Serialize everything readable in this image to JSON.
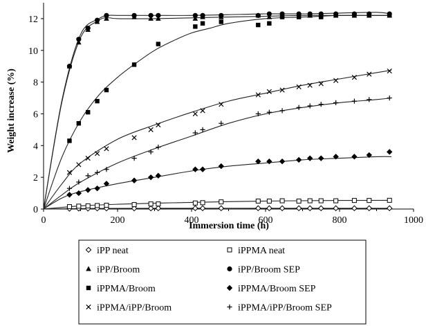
{
  "chart_data": {
    "type": "scatter",
    "title": "",
    "xlabel": "Immersion time (h)",
    "ylabel": "Weight increase  (%)",
    "xlim": [
      0,
      1000
    ],
    "ylim": [
      0,
      13
    ],
    "x_ticks": [
      "0",
      "200",
      "400",
      "600",
      "800",
      "1000"
    ],
    "y_ticks": [
      "0",
      "2",
      "4",
      "6",
      "8",
      "10",
      "12"
    ],
    "x_tick_values": [
      0,
      200,
      400,
      600,
      800,
      1000
    ],
    "y_tick_values": [
      0,
      2,
      4,
      6,
      8,
      10,
      12
    ],
    "grid": false,
    "legend_position": "bottom",
    "series": [
      {
        "name": "iPP neat",
        "marker": "diamond-open",
        "x": [
          70,
          95,
          120,
          145,
          170,
          245,
          290,
          310,
          410,
          430,
          480,
          580,
          610,
          645,
          690,
          720,
          750,
          790,
          840,
          880,
          935
        ],
        "y": [
          0.02,
          0.03,
          0.03,
          0.04,
          0.04,
          0.04,
          0.04,
          0.05,
          0.05,
          0.05,
          0.05,
          0.05,
          0.05,
          0.05,
          0.05,
          0.05,
          0.05,
          0.05,
          0.05,
          0.05,
          0.05
        ]
      },
      {
        "name": "iPPMA neat",
        "marker": "square-open",
        "x": [
          70,
          95,
          120,
          145,
          170,
          245,
          290,
          310,
          410,
          430,
          480,
          580,
          610,
          645,
          690,
          720,
          750,
          790,
          840,
          880,
          935
        ],
        "y": [
          0.15,
          0.18,
          0.2,
          0.22,
          0.24,
          0.28,
          0.32,
          0.32,
          0.38,
          0.4,
          0.45,
          0.5,
          0.5,
          0.52,
          0.5,
          0.52,
          0.52,
          0.52,
          0.54,
          0.54,
          0.55
        ]
      },
      {
        "name": "iPP/Broom",
        "marker": "triangle-filled",
        "x": [
          70,
          95,
          120,
          145,
          170,
          245,
          290,
          310,
          410,
          430,
          480,
          580,
          610,
          645,
          690,
          720,
          750,
          790,
          840,
          880,
          935
        ],
        "y": [
          9.0,
          10.5,
          11.3,
          11.8,
          12.0,
          12.1,
          12.0,
          12.0,
          12.0,
          12.1,
          12.1,
          12.2,
          12.1,
          12.2,
          12.2,
          12.2,
          12.2,
          12.2,
          12.2,
          12.2,
          12.2
        ]
      },
      {
        "name": "iPP/Broom SEP",
        "marker": "circle-filled",
        "x": [
          70,
          95,
          120,
          145,
          170,
          245,
          290,
          310,
          410,
          430,
          480,
          580,
          610,
          645,
          690,
          720,
          750,
          790,
          840,
          880,
          935
        ],
        "y": [
          9.0,
          10.7,
          11.4,
          11.9,
          12.2,
          12.2,
          12.2,
          12.2,
          12.2,
          12.2,
          12.2,
          12.2,
          12.3,
          12.3,
          12.3,
          12.3,
          12.3,
          12.3,
          12.3,
          12.3,
          12.3
        ]
      },
      {
        "name": "iPPMA/Broom",
        "marker": "square-filled",
        "x": [
          70,
          95,
          120,
          145,
          170,
          245,
          310,
          410,
          430,
          480,
          580,
          610,
          645,
          690,
          720,
          750,
          790,
          840,
          880,
          935
        ],
        "y": [
          4.3,
          5.4,
          6.1,
          6.8,
          7.5,
          9.1,
          10.4,
          11.5,
          11.7,
          11.8,
          11.6,
          11.7,
          12.1,
          12.1,
          12.2,
          12.1,
          12.2,
          12.2,
          12.2,
          12.2
        ]
      },
      {
        "name": "iPPMA/Broom SEP",
        "marker": "diamond-filled",
        "x": [
          70,
          95,
          120,
          145,
          170,
          245,
          290,
          310,
          410,
          430,
          480,
          580,
          610,
          645,
          690,
          720,
          750,
          790,
          840,
          880,
          935
        ],
        "y": [
          0.9,
          1.0,
          1.2,
          1.3,
          1.6,
          1.8,
          2.0,
          2.1,
          2.5,
          2.5,
          2.7,
          3.0,
          3.0,
          3.0,
          3.1,
          3.2,
          3.2,
          3.3,
          3.3,
          3.4,
          3.6
        ]
      },
      {
        "name": "iPPMA/iPP/Broom",
        "marker": "cross",
        "x": [
          70,
          95,
          120,
          145,
          170,
          245,
          290,
          310,
          410,
          430,
          480,
          580,
          610,
          645,
          690,
          720,
          750,
          790,
          840,
          880,
          935
        ],
        "y": [
          2.3,
          2.8,
          3.2,
          3.5,
          3.8,
          4.5,
          5.0,
          5.3,
          6.0,
          6.2,
          6.6,
          7.2,
          7.4,
          7.5,
          7.7,
          7.8,
          7.9,
          8.1,
          8.3,
          8.5,
          8.7
        ]
      },
      {
        "name": "iPPMA/iPP/Broom SEP",
        "marker": "plus",
        "x": [
          70,
          95,
          120,
          145,
          170,
          245,
          290,
          310,
          410,
          430,
          480,
          580,
          610,
          645,
          690,
          720,
          750,
          790,
          840,
          880,
          935
        ],
        "y": [
          1.3,
          1.7,
          2.1,
          2.3,
          2.5,
          3.2,
          3.6,
          3.9,
          4.8,
          5.0,
          5.4,
          6.0,
          6.1,
          6.2,
          6.4,
          6.5,
          6.6,
          6.7,
          6.8,
          6.9,
          7.0
        ]
      }
    ],
    "fits": [
      {
        "x": [
          0,
          50,
          100,
          150,
          175,
          200,
          300,
          400,
          500,
          600,
          700,
          800,
          900,
          940
        ],
        "y": [
          0,
          6.8,
          10.8,
          11.9,
          12.05,
          12.0,
          12.0,
          12.05,
          12.1,
          12.15,
          12.2,
          12.2,
          12.2,
          12.2
        ]
      },
      {
        "x": [
          0,
          50,
          100,
          150,
          175,
          200,
          300,
          400,
          500,
          600,
          700,
          800,
          900,
          940
        ],
        "y": [
          0,
          6.9,
          11.0,
          12.0,
          12.2,
          12.2,
          12.2,
          12.2,
          12.25,
          12.3,
          12.3,
          12.35,
          12.4,
          12.3
        ]
      },
      {
        "x": [
          0,
          50,
          100,
          150,
          200,
          250,
          300,
          350,
          400,
          450,
          500,
          600,
          700,
          800,
          900,
          940
        ],
        "y": [
          0,
          3.3,
          5.6,
          7.2,
          8.3,
          9.2,
          10.0,
          10.6,
          11.1,
          11.4,
          11.7,
          12.0,
          12.1,
          12.2,
          12.2,
          12.2
        ]
      },
      {
        "x": [
          0,
          50,
          100,
          200,
          300,
          400,
          500,
          600,
          700,
          800,
          900,
          940
        ],
        "y": [
          0,
          0.7,
          1.1,
          1.6,
          2.0,
          2.4,
          2.7,
          2.9,
          3.1,
          3.2,
          3.3,
          3.3
        ]
      },
      {
        "x": [
          0,
          50,
          100,
          200,
          300,
          400,
          500,
          600,
          700,
          800,
          900,
          940
        ],
        "y": [
          0,
          1.6,
          2.9,
          4.4,
          5.3,
          6.1,
          6.8,
          7.3,
          7.8,
          8.2,
          8.6,
          8.75
        ]
      },
      {
        "x": [
          0,
          50,
          100,
          200,
          300,
          400,
          500,
          600,
          700,
          800,
          900,
          940
        ],
        "y": [
          0,
          0.9,
          1.7,
          2.9,
          3.8,
          4.6,
          5.4,
          6.0,
          6.4,
          6.7,
          6.9,
          7.0
        ]
      },
      {
        "x": [
          0,
          100,
          200,
          400,
          600,
          800,
          940
        ],
        "y": [
          0,
          0.2,
          0.3,
          0.42,
          0.5,
          0.54,
          0.55
        ]
      },
      {
        "x": [
          0,
          100,
          200,
          400,
          600,
          800,
          940
        ],
        "y": [
          0,
          0.03,
          0.04,
          0.05,
          0.05,
          0.05,
          0.05
        ]
      }
    ]
  }
}
